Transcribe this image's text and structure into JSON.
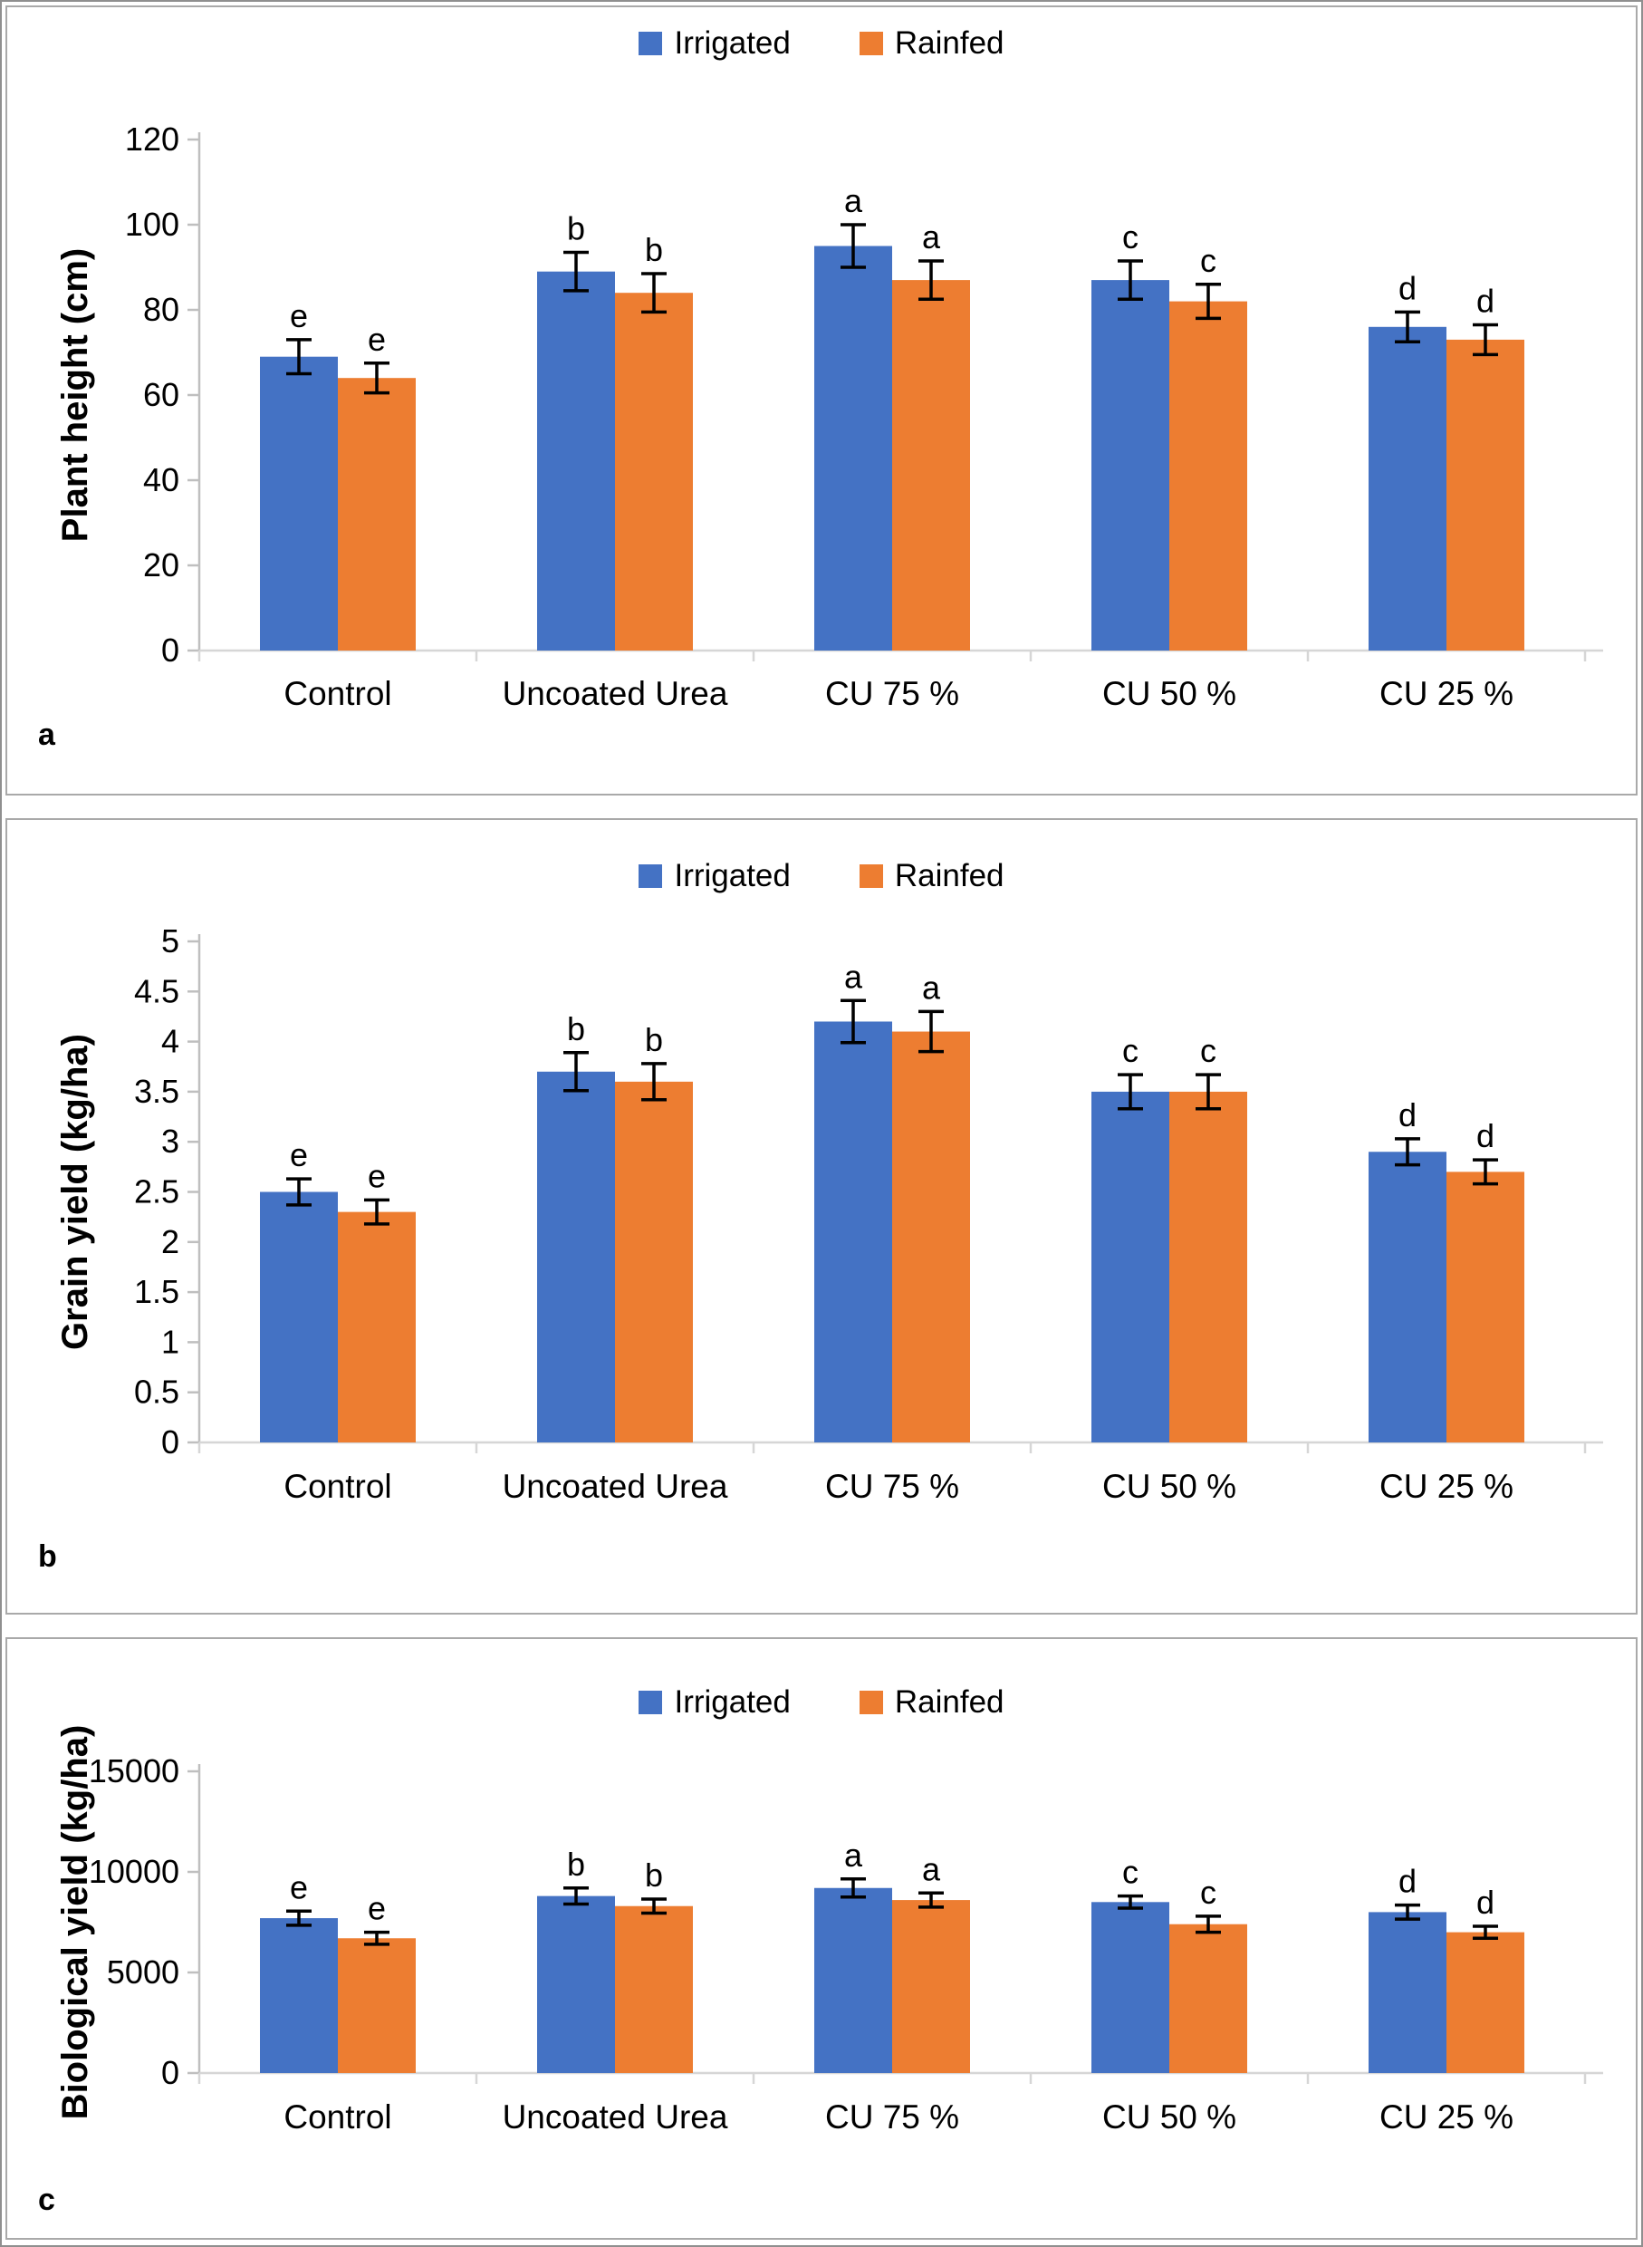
{
  "figure": {
    "legend": {
      "items": [
        {
          "label": "Irrigated",
          "color": "#4472C4"
        },
        {
          "label": "Rainfed",
          "color": "#ED7D31"
        }
      ]
    }
  },
  "colors": {
    "irrigated": "#4472C4",
    "rainfed": "#ED7D31",
    "axis_line": "#BFBFBF",
    "x_axis_line": "#D6D6D6",
    "error_bar": "#000000",
    "text": "#000000"
  },
  "chart_data": [
    {
      "type": "bar",
      "panel_label": "a",
      "title": "",
      "xlabel": "",
      "ylabel": "Plant height (cm)",
      "ylim": [
        0,
        120
      ],
      "yticks": [
        0,
        20,
        40,
        60,
        80,
        100,
        120
      ],
      "ytick_labels": [
        "0",
        "20",
        "40",
        "60",
        "80",
        "100",
        "120"
      ],
      "categories": [
        "Control",
        "Uncoated Urea",
        "CU 75 %",
        "CU 50 %",
        "CU 25 %"
      ],
      "grid": false,
      "legend_position": "top",
      "error_bars": true,
      "series": [
        {
          "name": "Irrigated",
          "color": "#4472C4",
          "values": [
            69,
            89,
            95,
            87,
            76
          ],
          "errors": [
            4,
            4.5,
            5,
            4.5,
            3.5
          ],
          "letters": [
            "e",
            "b",
            "a",
            "c",
            "d"
          ]
        },
        {
          "name": "Rainfed",
          "color": "#ED7D31",
          "values": [
            64,
            84,
            87,
            82,
            73
          ],
          "errors": [
            3.5,
            4.5,
            4.5,
            4,
            3.5
          ],
          "letters": [
            "e",
            "b",
            "a",
            "c",
            "d"
          ]
        }
      ]
    },
    {
      "type": "bar",
      "panel_label": "b",
      "title": "",
      "xlabel": "",
      "ylabel": "Grain yield (kg/ha)",
      "ylim": [
        0,
        5
      ],
      "yticks": [
        0,
        0.5,
        1,
        1.5,
        2,
        2.5,
        3,
        3.5,
        4,
        4.5,
        5
      ],
      "ytick_labels": [
        "0",
        "0.5",
        "1",
        "1.5",
        "2",
        "2.5",
        "3",
        "3.5",
        "4",
        "4.5",
        "5"
      ],
      "categories": [
        "Control",
        "Uncoated Urea",
        "CU 75 %",
        "CU 50 %",
        "CU 25 %"
      ],
      "grid": false,
      "legend_position": "top",
      "error_bars": true,
      "series": [
        {
          "name": "Irrigated",
          "color": "#4472C4",
          "values": [
            2.5,
            3.7,
            4.2,
            3.5,
            2.9
          ],
          "errors": [
            0.13,
            0.19,
            0.21,
            0.17,
            0.13
          ],
          "letters": [
            "e",
            "b",
            "a",
            "c",
            "d"
          ]
        },
        {
          "name": "Rainfed",
          "color": "#ED7D31",
          "values": [
            2.3,
            3.6,
            4.1,
            3.5,
            2.7
          ],
          "errors": [
            0.12,
            0.18,
            0.2,
            0.17,
            0.12
          ],
          "letters": [
            "e",
            "b",
            "a",
            "c",
            "d"
          ]
        }
      ]
    },
    {
      "type": "bar",
      "panel_label": "c",
      "title": "",
      "xlabel": "",
      "ylabel": "Biological yield (kg/ha)",
      "ylim": [
        0,
        15000
      ],
      "yticks": [
        0,
        5000,
        10000,
        15000
      ],
      "ytick_labels": [
        "0",
        "5000",
        "10000",
        "15000"
      ],
      "categories": [
        "Control",
        "Uncoated Urea",
        "CU 75 %",
        "CU 50 %",
        "CU 25 %"
      ],
      "grid": false,
      "legend_position": "top",
      "error_bars": true,
      "series": [
        {
          "name": "Irrigated",
          "color": "#4472C4",
          "values": [
            7700,
            8800,
            9200,
            8500,
            8000
          ],
          "errors": [
            350,
            400,
            450,
            300,
            350
          ],
          "letters": [
            "e",
            "b",
            "a",
            "c",
            "d"
          ]
        },
        {
          "name": "Rainfed",
          "color": "#ED7D31",
          "values": [
            6700,
            8300,
            8600,
            7400,
            7000
          ],
          "errors": [
            300,
            350,
            350,
            400,
            300
          ],
          "letters": [
            "e",
            "b",
            "a",
            "c",
            "d"
          ]
        }
      ]
    }
  ]
}
